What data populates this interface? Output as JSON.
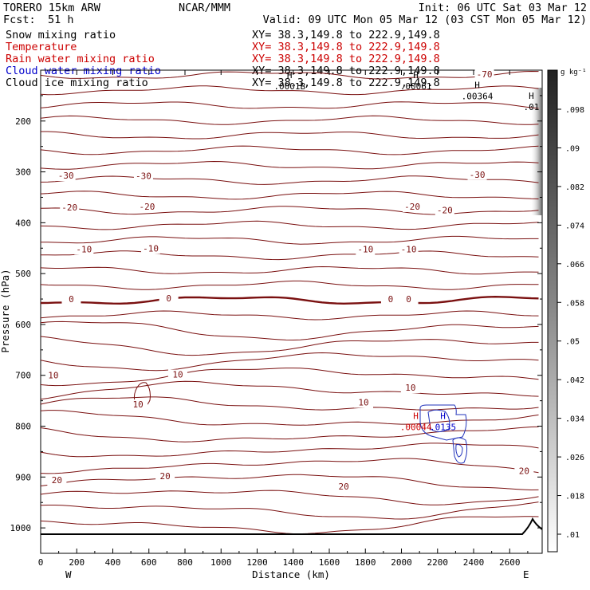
{
  "header": {
    "model": "TORERO  15km ARW",
    "org": "NCAR/MMM",
    "init": "Init: 06 UTC Sat 03 Mar 12",
    "fcst_label": "Fcst:",
    "fcst_value": "51 h",
    "valid": "Valid: 09 UTC Mon 05 Mar 12 (03 CST Mon 05 Mar 12)"
  },
  "fields": [
    {
      "name": "Snow mixing ratio",
      "xy": "XY=  38.3,149.8 to 222.9,149.8",
      "color": "#000000",
      "xy_color": "#000000"
    },
    {
      "name": "Temperature",
      "xy": "XY=  38.3,149.8 to 222.9,149.8",
      "color": "#cc0000",
      "xy_color": "#cc0000"
    },
    {
      "name": "Rain water mixing ratio",
      "xy": "XY=  38.3,149.8 to 222.9,149.8",
      "color": "#cc0000",
      "xy_color": "#cc0000"
    },
    {
      "name": "Cloud water mixing ratio",
      "xy": "XY=  38.3,149.8 to 222.9,149.8",
      "color": "#0000cc",
      "xy_color": "#000000"
    },
    {
      "name": "Cloud ice mixing ratio",
      "xy": "XY=  38.3,149.8 to 222.9,149.8",
      "color": "#000000",
      "xy_color": "#000000"
    }
  ],
  "chart_data": {
    "type": "contour",
    "xlabel": "Distance (km)",
    "ylabel": "Pressure (hPa)",
    "xlim": [
      0,
      2780
    ],
    "ylim": [
      1050,
      100
    ],
    "x_ticks": [
      0,
      200,
      400,
      600,
      800,
      1000,
      1200,
      1400,
      1600,
      1800,
      2000,
      2200,
      2400,
      2600
    ],
    "y_ticks": [
      200,
      300,
      400,
      500,
      600,
      700,
      800,
      900,
      1000
    ],
    "x_end_labels": {
      "left": "W",
      "right": "E"
    },
    "colorbar": {
      "unit": "g kg⁻¹",
      "ticks": [
        ".098",
        ".09",
        ".082",
        ".074",
        ".066",
        ".058",
        ".05",
        ".042",
        ".034",
        ".026",
        ".018",
        ".01"
      ]
    },
    "temperature_contours": [
      {
        "value": -70,
        "label": "-70",
        "pressure": 110
      },
      {
        "value": -30,
        "label": "-30",
        "pressure": 305
      },
      {
        "value": -20,
        "label": "-20",
        "pressure": 365
      },
      {
        "value": -10,
        "label": "-10",
        "pressure": 450
      },
      {
        "value": 0,
        "label": "0",
        "pressure": 550
      },
      {
        "value": 10,
        "label": "10",
        "pressure": 700
      },
      {
        "value": 20,
        "label": "20",
        "pressure": 900
      }
    ],
    "contour_labels": [
      {
        "text": "-70",
        "x": 2460,
        "p": 108
      },
      {
        "text": "-30",
        "x": 140,
        "p": 307
      },
      {
        "text": "-30",
        "x": 570,
        "p": 308
      },
      {
        "text": "-30",
        "x": 2420,
        "p": 305
      },
      {
        "text": "-20",
        "x": 160,
        "p": 370
      },
      {
        "text": "-20",
        "x": 590,
        "p": 368
      },
      {
        "text": "-20",
        "x": 2060,
        "p": 368
      },
      {
        "text": "-20",
        "x": 2240,
        "p": 375
      },
      {
        "text": "-10",
        "x": 240,
        "p": 452
      },
      {
        "text": "-10",
        "x": 610,
        "p": 450
      },
      {
        "text": "-10",
        "x": 1800,
        "p": 452
      },
      {
        "text": "-10",
        "x": 2040,
        "p": 452
      },
      {
        "text": "0",
        "x": 170,
        "p": 550
      },
      {
        "text": "0",
        "x": 710,
        "p": 548
      },
      {
        "text": "0",
        "x": 1940,
        "p": 550
      },
      {
        "text": "0",
        "x": 2040,
        "p": 550
      },
      {
        "text": "10",
        "x": 70,
        "p": 700
      },
      {
        "text": "10",
        "x": 760,
        "p": 698
      },
      {
        "text": "10",
        "x": 1790,
        "p": 753
      },
      {
        "text": "10",
        "x": 2050,
        "p": 724
      },
      {
        "text": "10",
        "x": 540,
        "p": 757
      },
      {
        "text": "20",
        "x": 90,
        "p": 906
      },
      {
        "text": "20",
        "x": 690,
        "p": 898
      },
      {
        "text": "20",
        "x": 1680,
        "p": 918
      },
      {
        "text": "20",
        "x": 2680,
        "p": 888
      }
    ],
    "extrema": [
      {
        "mark": "H",
        "value": ".0001B",
        "x": 1380,
        "p": 138,
        "color": "#000000"
      },
      {
        "mark": "H",
        "value": ".00061",
        "x": 2080,
        "p": 138,
        "color": "#000000"
      },
      {
        "mark": "H",
        "value": ".00364",
        "x": 2420,
        "p": 157,
        "color": "#000000"
      },
      {
        "mark": "H",
        "value": ".01",
        "x": 2720,
        "p": 178,
        "color": "#000000"
      },
      {
        "mark": "H",
        "value": ".00044",
        "x": 2080,
        "p": 808,
        "color": "#cc0000"
      },
      {
        "mark": "H",
        "value": ".0135",
        "x": 2230,
        "p": 808,
        "color": "#0000cc"
      }
    ]
  }
}
